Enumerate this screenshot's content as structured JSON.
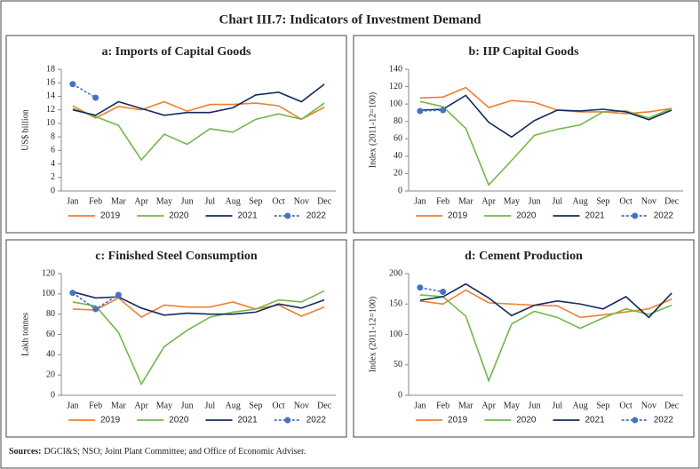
{
  "title": "Chart III.7: Indicators of Investment Demand",
  "sources_label": "Sources:",
  "sources_text": "DGCI&S; NSO; Joint Plant Committee; and Office of Economic Adviser.",
  "chart_data": [
    {
      "type": "line",
      "title": "a: Imports of Capital Goods",
      "y_label": "US$ billion",
      "categories": [
        "Jan",
        "Feb",
        "Mar",
        "Apr",
        "May",
        "Jun",
        "Jul",
        "Aug",
        "Sep",
        "Oct",
        "Nov",
        "Dec"
      ],
      "ylim": [
        0,
        18
      ],
      "yticks": [
        0,
        2,
        4,
        6,
        8,
        10,
        12,
        14,
        16,
        18
      ],
      "series": [
        {
          "name": "2019",
          "color": "#f07f2f",
          "values": [
            12.6,
            10.8,
            12.5,
            12.0,
            13.2,
            11.8,
            12.8,
            12.8,
            13.0,
            12.6,
            10.6,
            12.4
          ]
        },
        {
          "name": "2020",
          "color": "#71b847",
          "values": [
            12.2,
            11.0,
            9.7,
            4.6,
            8.4,
            6.9,
            9.2,
            8.7,
            10.6,
            11.4,
            10.6,
            13.0
          ]
        },
        {
          "name": "2021",
          "color": "#152a5e",
          "values": [
            12.0,
            11.2,
            13.2,
            12.2,
            11.2,
            11.6,
            11.6,
            12.3,
            14.2,
            14.6,
            13.2,
            15.8
          ]
        },
        {
          "name": "2022",
          "color": "#4472c4",
          "linestyle": "dashed",
          "marker": "circle",
          "values": [
            15.8,
            13.8,
            null,
            null,
            null,
            null,
            null,
            null,
            null,
            null,
            null,
            null
          ]
        }
      ]
    },
    {
      "type": "line",
      "title": "b: IIP Capital Goods",
      "y_label": "Index (2011-12=100)",
      "categories": [
        "Jan",
        "Feb",
        "Mar",
        "Apr",
        "May",
        "Jun",
        "Jul",
        "Aug",
        "Sep",
        "Oct",
        "Nov",
        "Dec"
      ],
      "ylim": [
        0,
        140
      ],
      "yticks": [
        0,
        20,
        40,
        60,
        80,
        100,
        120,
        140
      ],
      "series": [
        {
          "name": "2019",
          "color": "#f07f2f",
          "values": [
            107,
            108,
            119,
            96,
            104,
            102,
            93,
            91,
            91,
            89,
            91,
            95
          ]
        },
        {
          "name": "2020",
          "color": "#71b847",
          "values": [
            103,
            97,
            72,
            7,
            35,
            64,
            71,
            76,
            91,
            92,
            84,
            95
          ]
        },
        {
          "name": "2021",
          "color": "#152a5e",
          "values": [
            93,
            94,
            110,
            79,
            62,
            81,
            93,
            92,
            94,
            91,
            82,
            93
          ]
        },
        {
          "name": "2022",
          "color": "#4472c4",
          "linestyle": "dashed",
          "marker": "circle",
          "values": [
            92,
            93,
            null,
            null,
            null,
            null,
            null,
            null,
            null,
            null,
            null,
            null
          ]
        }
      ]
    },
    {
      "type": "line",
      "title": "c: Finished Steel Consumption",
      "y_label": "Lakh tonnes",
      "categories": [
        "Jan",
        "Feb",
        "Mar",
        "Apr",
        "May",
        "Jun",
        "Jul",
        "Aug",
        "Sep",
        "Oct",
        "Nov",
        "Dec"
      ],
      "ylim": [
        0,
        120
      ],
      "yticks": [
        0,
        20,
        40,
        60,
        80,
        100,
        120
      ],
      "series": [
        {
          "name": "2019",
          "color": "#f07f2f",
          "values": [
            85,
            84,
            96,
            77,
            89,
            87,
            87,
            92,
            85,
            89,
            78,
            87
          ]
        },
        {
          "name": "2020",
          "color": "#71b847",
          "values": [
            92,
            88,
            62,
            11,
            48,
            64,
            77,
            82,
            85,
            94,
            92,
            103
          ]
        },
        {
          "name": "2021",
          "color": "#152a5e",
          "values": [
            102,
            96,
            97,
            86,
            79,
            81,
            80,
            80,
            82,
            90,
            86,
            94
          ]
        },
        {
          "name": "2022",
          "color": "#4472c4",
          "linestyle": "dashed",
          "marker": "circle",
          "values": [
            101,
            85,
            99,
            null,
            null,
            null,
            null,
            null,
            null,
            null,
            null,
            null
          ]
        }
      ]
    },
    {
      "type": "line",
      "title": "d: Cement Production",
      "y_label": "Index (2011-12=100)",
      "categories": [
        "Jan",
        "Feb",
        "Mar",
        "Apr",
        "May",
        "Jun",
        "Jul",
        "Aug",
        "Sep",
        "Oct",
        "Nov",
        "Dec"
      ],
      "ylim": [
        0,
        200
      ],
      "yticks": [
        0,
        50,
        100,
        150,
        200
      ],
      "series": [
        {
          "name": "2019",
          "color": "#f07f2f",
          "values": [
            155,
            150,
            173,
            152,
            150,
            148,
            147,
            128,
            132,
            137,
            142,
            158
          ]
        },
        {
          "name": "2020",
          "color": "#71b847",
          "values": [
            165,
            162,
            130,
            24,
            117,
            138,
            128,
            110,
            127,
            142,
            133,
            148
          ]
        },
        {
          "name": "2021",
          "color": "#152a5e",
          "values": [
            156,
            162,
            183,
            160,
            131,
            148,
            155,
            150,
            142,
            162,
            128,
            168
          ]
        },
        {
          "name": "2022",
          "color": "#4472c4",
          "linestyle": "dashed",
          "marker": "circle",
          "values": [
            177,
            170,
            null,
            null,
            null,
            null,
            null,
            null,
            null,
            null,
            null,
            null
          ]
        }
      ]
    }
  ]
}
